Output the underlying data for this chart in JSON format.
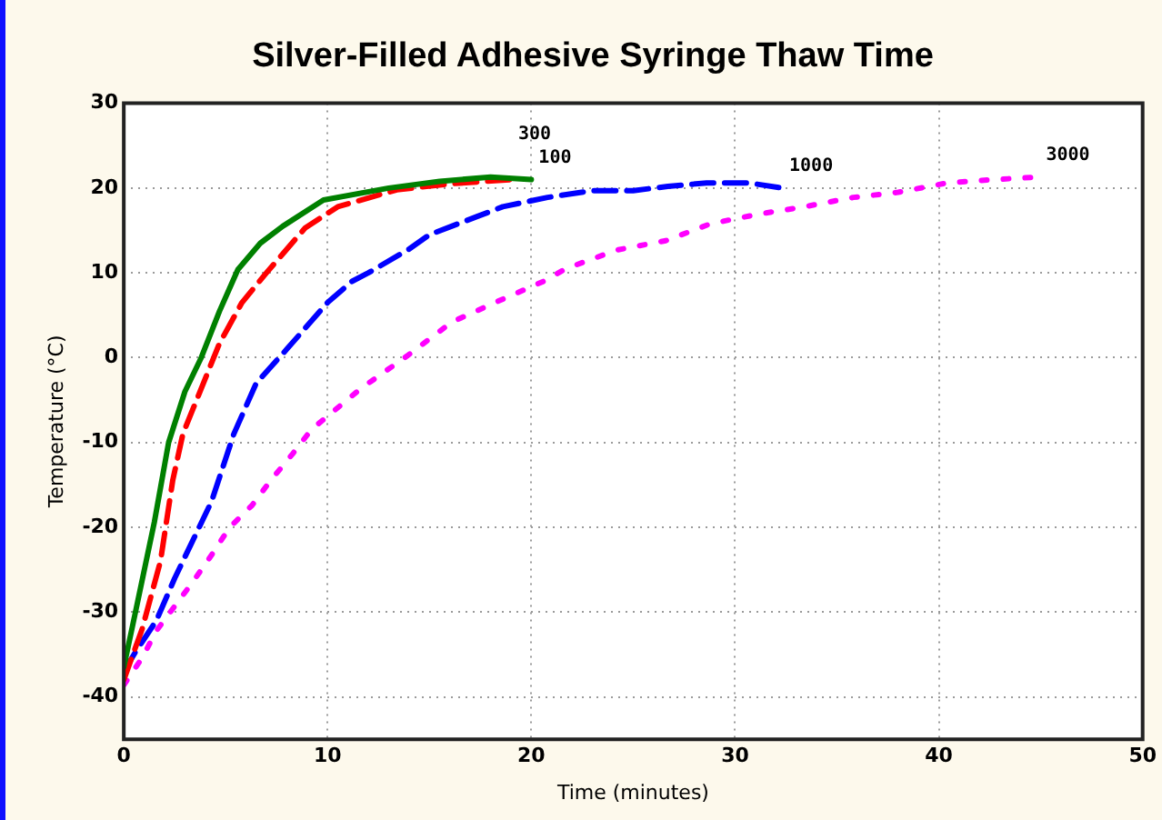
{
  "chart_data": {
    "type": "line",
    "title": "Silver-Filled Adhesive Syringe Thaw Time",
    "xlabel": "Time (minutes)",
    "ylabel": "Temperature (°C)",
    "xlim": [
      0,
      50
    ],
    "xticks": [
      0,
      10,
      20,
      30,
      40,
      50
    ],
    "ylim": [
      -45,
      30
    ],
    "yticks": [
      -40,
      -30,
      -20,
      -10,
      0,
      10,
      20,
      30
    ],
    "grid": true,
    "legend": false,
    "marker": "none",
    "series": [
      {
        "name": "100",
        "color": "#008000",
        "line_style": "solid",
        "x": [
          0,
          0.6,
          1.5,
          2.2,
          3,
          3.8,
          4.7,
          5.6,
          6.7,
          7.8,
          9.8,
          13,
          15.5,
          18,
          20
        ],
        "values": [
          -36.5,
          -29.7,
          -19.4,
          -10,
          -4,
          0,
          5.5,
          10.4,
          13.5,
          15.5,
          18.6,
          20,
          20.8,
          21.3,
          21
        ]
      },
      {
        "name": "300",
        "color": "#ff0000",
        "line_style": "dashed",
        "x": [
          0,
          0.9,
          1.8,
          2.4,
          2.9,
          4.7,
          5.8,
          7,
          8.9,
          10.5,
          13.4,
          16,
          19
        ],
        "values": [
          -38,
          -32,
          -24,
          -14.5,
          -9,
          1.7,
          6.5,
          10,
          15.3,
          17.8,
          19.8,
          20.5,
          21
        ]
      },
      {
        "name": "1000",
        "color": "#0000ff",
        "line_style": "dashed",
        "x": [
          0,
          0.6,
          1.6,
          2.5,
          3.3,
          4.3,
          5.4,
          6.5,
          8,
          10,
          11.2,
          12,
          14,
          15,
          17.4,
          18.6,
          20.8,
          23,
          25,
          26.7,
          28.6,
          30.7,
          32.3
        ],
        "values": [
          -37,
          -34.6,
          -31,
          -26,
          -22,
          -17,
          -9,
          -3,
          1,
          6.5,
          9,
          10,
          12.8,
          14.5,
          16.7,
          17.8,
          18.9,
          19.7,
          19.7,
          20.2,
          20.6,
          20.6,
          20
        ]
      },
      {
        "name": "3000",
        "color": "#ff00ff",
        "line_style": "dotted",
        "x": [
          0,
          0.9,
          1.6,
          2.5,
          3.4,
          4.3,
          5.2,
          6.3,
          7.2,
          8.3,
          9.2,
          11.6,
          13.9,
          16.1,
          18.5,
          20.6,
          21.7,
          24.2,
          26.6,
          28.8,
          31.1,
          33.4,
          35.8,
          38,
          40.4,
          42.7,
          44.9
        ],
        "values": [
          -38.6,
          -35.4,
          -32.2,
          -29.3,
          -26.4,
          -23.3,
          -20,
          -17.4,
          -14.5,
          -11.3,
          -8.5,
          -3.7,
          0.2,
          4.2,
          6.8,
          9,
          10.5,
          12.7,
          13.8,
          15.8,
          16.9,
          17.8,
          18.9,
          19.5,
          20.6,
          21,
          21.3
        ]
      }
    ]
  }
}
